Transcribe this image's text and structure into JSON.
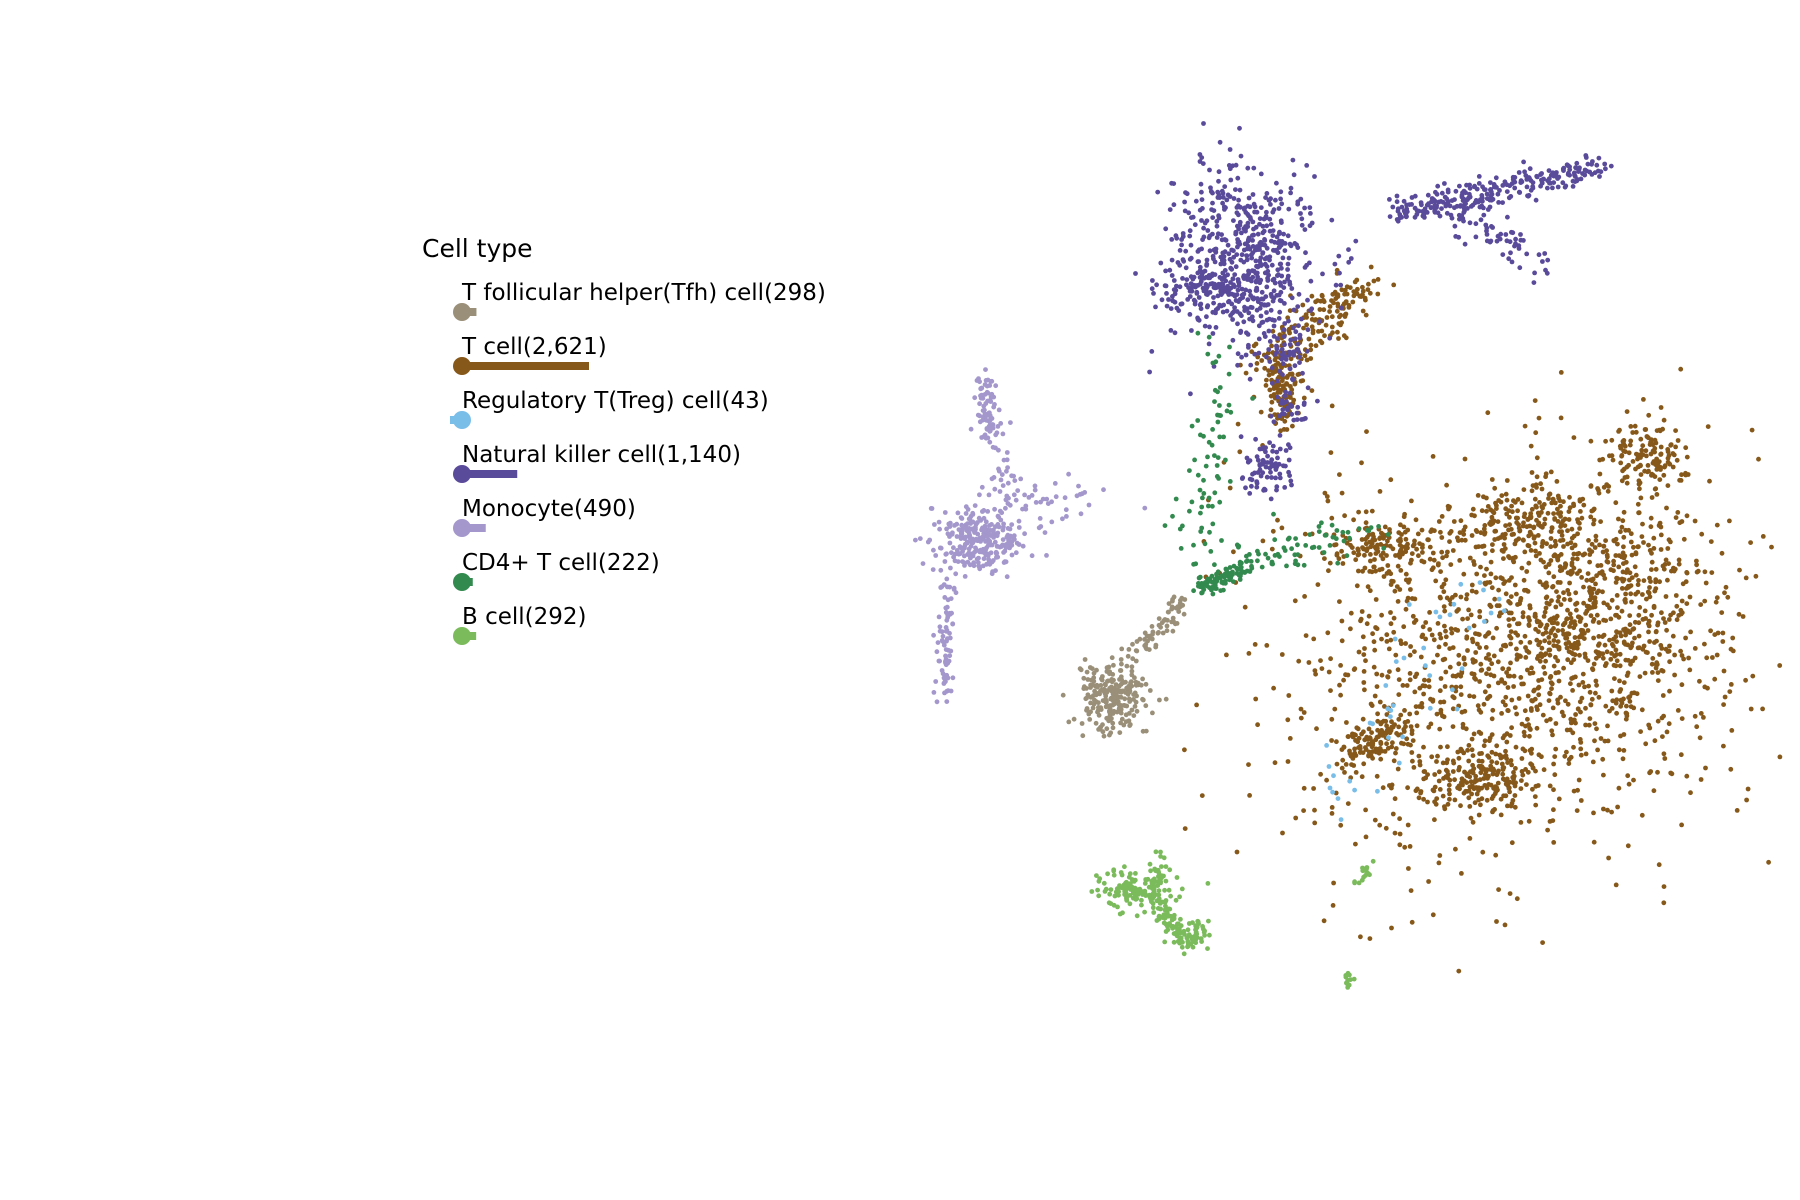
{
  "chart_data": {
    "type": "scatter",
    "legend": {
      "title": "Cell type",
      "placement": "upper-left"
    },
    "grid": false,
    "axes_visible": false,
    "series": [
      {
        "key": "tfh",
        "name": "T follicular helper(Tfh) cell(298)",
        "count": 298,
        "color": "#9a8f78"
      },
      {
        "key": "tcell",
        "name": "T cell(2,621)",
        "count": 2621,
        "color": "#86581a"
      },
      {
        "key": "treg",
        "name": "Regulatory T(Treg) cell(43)",
        "count": 43,
        "color": "#79bde9"
      },
      {
        "key": "nk",
        "name": "Natural killer cell(1,140)",
        "count": 1140,
        "color": "#5a4a9a"
      },
      {
        "key": "mono",
        "name": "Monocyte(490)",
        "count": 490,
        "color": "#a397cc"
      },
      {
        "key": "cd4",
        "name": "CD4+ T cell(222)",
        "count": 222,
        "color": "#338a4f"
      },
      {
        "key": "bcell",
        "name": "B cell(292)",
        "count": 292,
        "color": "#7bbb5c"
      }
    ]
  }
}
